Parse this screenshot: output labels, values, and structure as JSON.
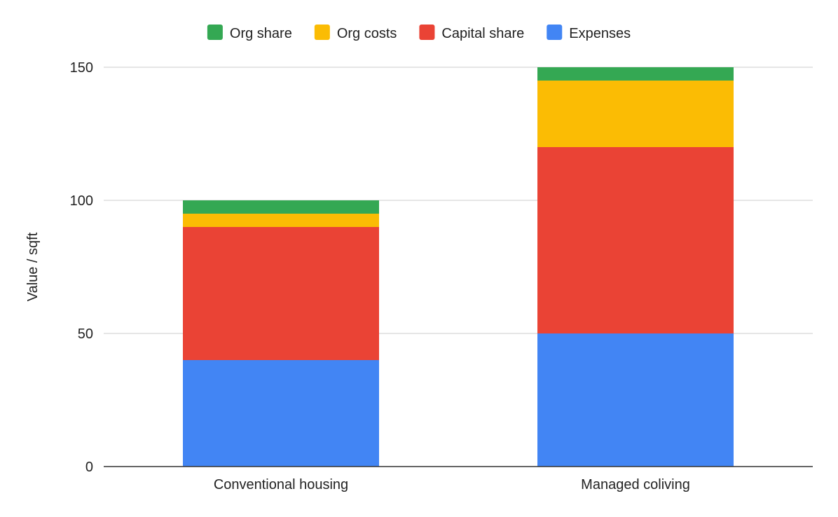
{
  "chart_data": {
    "type": "bar",
    "stacked": true,
    "categories": [
      "Conventional housing",
      "Managed coliving"
    ],
    "series": [
      {
        "name": "Expenses",
        "color": "#4285F4",
        "values": [
          40,
          50
        ]
      },
      {
        "name": "Capital share",
        "color": "#EA4335",
        "values": [
          50,
          70
        ]
      },
      {
        "name": "Org costs",
        "color": "#FBBC04",
        "values": [
          5,
          25
        ]
      },
      {
        "name": "Org share",
        "color": "#34A853",
        "values": [
          5,
          5
        ]
      }
    ],
    "legend_order": [
      "Org share",
      "Org costs",
      "Capital share",
      "Expenses"
    ],
    "legend_position": "top",
    "title": "",
    "xlabel": "",
    "ylabel": "Value / sqft",
    "ylim": [
      0,
      150
    ],
    "yticks": [
      0,
      50,
      100,
      150
    ],
    "grid": true
  }
}
